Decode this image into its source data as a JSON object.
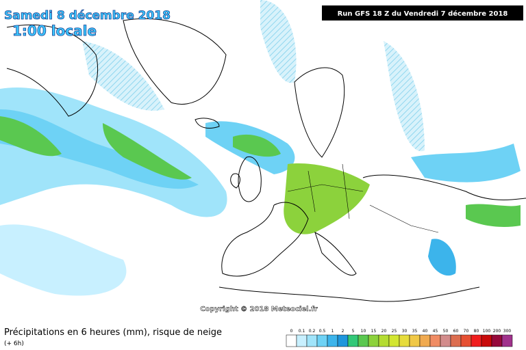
{
  "header": {
    "title": "Samedi 8 décembre 2018",
    "time": "1:00 locale",
    "run": "Run GFS 18 Z du Vendredi 7 décembre 2018"
  },
  "copyright": "Copyright © 2018 Meteociel.fr",
  "footer": {
    "title": "Précipitations en 6 heures (mm), risque de neige",
    "subtitle": "(+ 6h)"
  },
  "legend": [
    {
      "label": "0",
      "color": "#ffffff"
    },
    {
      "label": "0.1",
      "color": "#c8f0ff"
    },
    {
      "label": "0.2",
      "color": "#a0e4fa"
    },
    {
      "label": "0.5",
      "color": "#6ed2f5"
    },
    {
      "label": "1",
      "color": "#3cb4eb"
    },
    {
      "label": "2",
      "color": "#1e96dc"
    },
    {
      "label": "5",
      "color": "#32c878"
    },
    {
      "label": "10",
      "color": "#5ac850"
    },
    {
      "label": "15",
      "color": "#8cd23c"
    },
    {
      "label": "20",
      "color": "#b4dc32"
    },
    {
      "label": "25",
      "color": "#d2e632"
    },
    {
      "label": "30",
      "color": "#e6dc3c"
    },
    {
      "label": "35",
      "color": "#f0c846"
    },
    {
      "label": "40",
      "color": "#f0aa50"
    },
    {
      "label": "45",
      "color": "#f08c64"
    },
    {
      "label": "50",
      "color": "#d28c8c"
    },
    {
      "label": "60",
      "color": "#dc6e50"
    },
    {
      "label": "70",
      "color": "#e65032"
    },
    {
      "label": "80",
      "color": "#f01e1e"
    },
    {
      "label": "100",
      "color": "#c80a0a"
    },
    {
      "label": "200",
      "color": "#960a3c"
    },
    {
      "label": "300",
      "color": "#a0328c"
    }
  ]
}
